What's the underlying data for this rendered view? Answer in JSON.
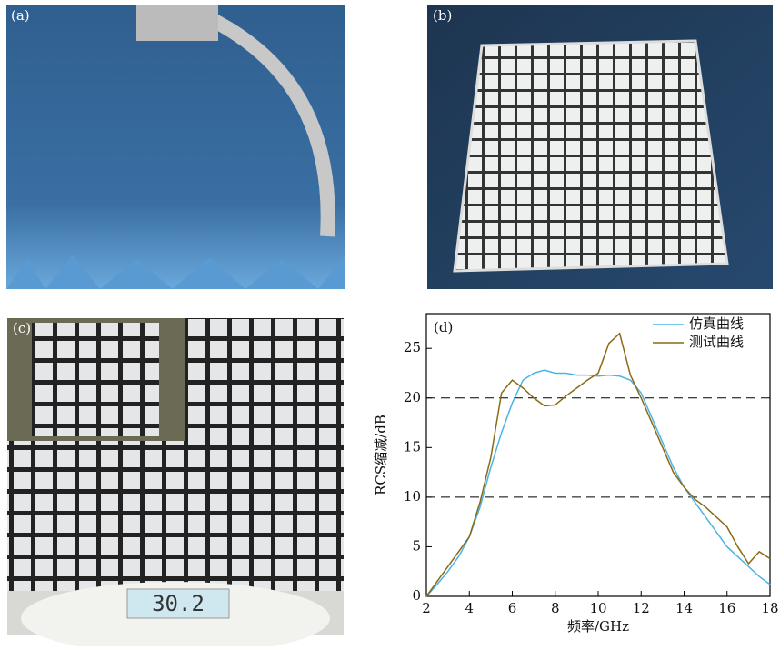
{
  "panels": [
    {
      "label": "(a)"
    },
    {
      "label": "(b)"
    },
    {
      "label": "(c)",
      "scale_reading": "30.2"
    }
  ],
  "chart_data": {
    "type": "line",
    "panel_label": "(d)",
    "x_label": "频率/GHz",
    "y_label": "RCS缩减/dB",
    "x": [
      2,
      2.5,
      3,
      3.5,
      4,
      4.5,
      5,
      5.5,
      6,
      6.5,
      7,
      7.5,
      8,
      8.5,
      9,
      9.5,
      10,
      10.5,
      11,
      11.5,
      12,
      12.5,
      13,
      13.5,
      14,
      14.5,
      15,
      15.5,
      16,
      16.5,
      17,
      17.5,
      18
    ],
    "series": [
      {
        "name": "仿真曲线",
        "color": "#4ab4e6",
        "values": [
          0,
          1.2,
          2.5,
          4,
          6,
          9,
          13,
          16.5,
          19.5,
          21.8,
          22.5,
          22.8,
          22.5,
          22.5,
          22.3,
          22.3,
          22.2,
          22.3,
          22.2,
          21.8,
          20.5,
          18,
          15.5,
          13,
          11,
          9.5,
          8,
          6.5,
          5,
          4,
          3,
          2,
          1.2
        ]
      },
      {
        "name": "测试曲线",
        "color": "#8a6a14",
        "values": [
          0,
          1.5,
          3,
          4.5,
          6,
          9.5,
          14,
          20.5,
          21.8,
          21,
          20,
          19.2,
          19.3,
          20.2,
          21,
          21.8,
          22.5,
          25.5,
          26.5,
          22.3,
          20,
          17.5,
          15,
          12.5,
          11,
          9.8,
          9,
          8,
          7,
          5,
          3.3,
          4.5,
          3.8
        ]
      }
    ],
    "xlim": [
      2,
      18
    ],
    "xticks": [
      2,
      4,
      6,
      8,
      10,
      12,
      14,
      16,
      18
    ],
    "ylim": [
      0,
      28.5
    ],
    "yticks": [
      0,
      5,
      10,
      15,
      20,
      25
    ],
    "reference_lines": [
      20,
      10
    ],
    "legend": "upper-right"
  }
}
